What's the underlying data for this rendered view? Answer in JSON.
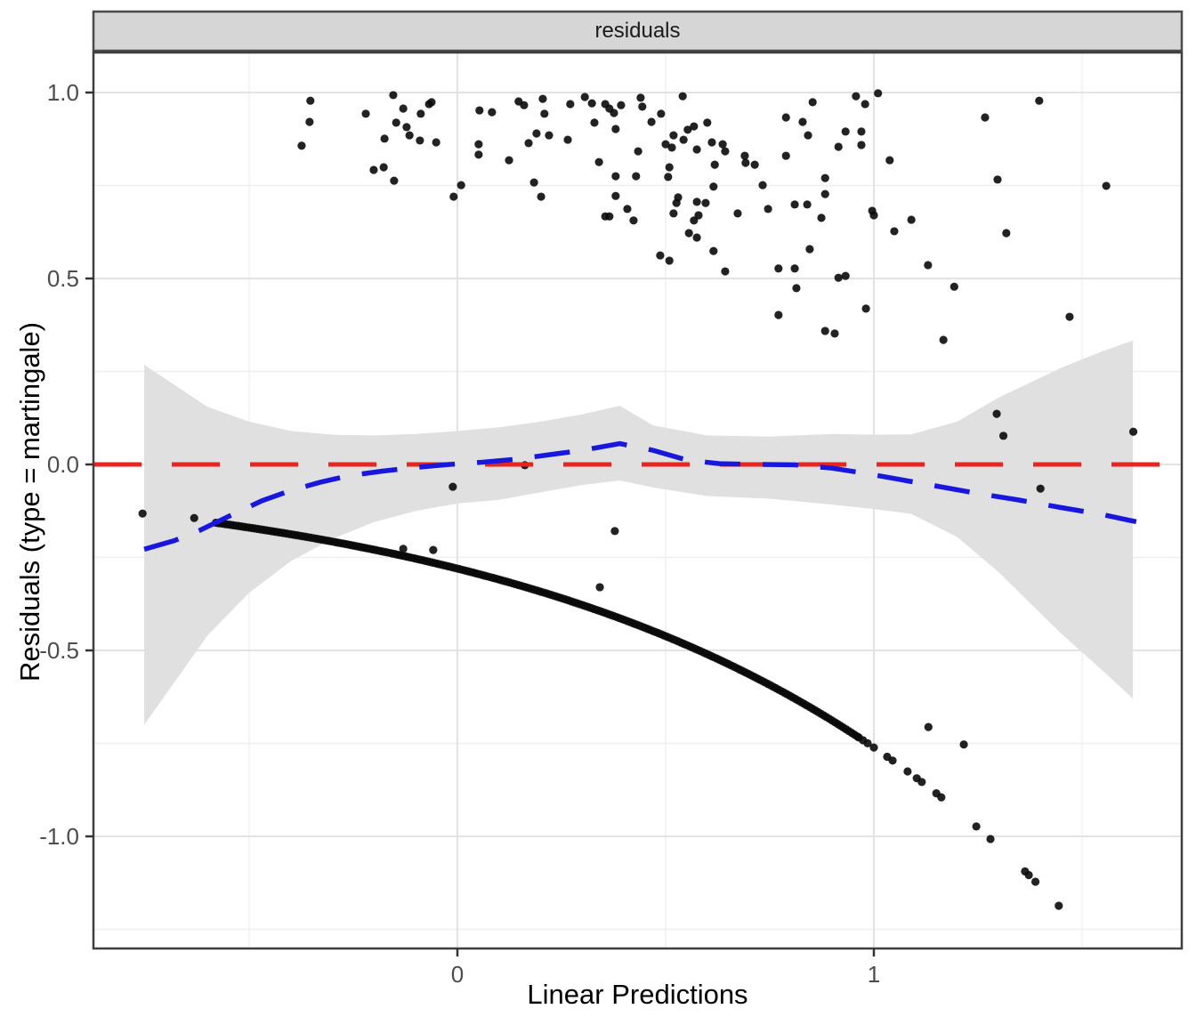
{
  "chart_data": {
    "type": "scatter",
    "facet_label": "residuals",
    "xlabel": "Linear Predictions",
    "ylabel": "Residuals (type = martingale)",
    "x_range": [
      -0.874,
      1.739
    ],
    "y_range": [
      -1.301,
      1.105
    ],
    "grid": "on",
    "x_ticks": [
      {
        "value": 0,
        "label": "0"
      },
      {
        "value": 1,
        "label": "1"
      }
    ],
    "y_ticks": [
      {
        "value": 1.0,
        "label": "1.0"
      },
      {
        "value": 0.5,
        "label": "0.5"
      },
      {
        "value": 0.0,
        "label": "0.0"
      },
      {
        "value": -0.5,
        "label": "-0.5"
      },
      {
        "value": -1.0,
        "label": "-1.0"
      }
    ],
    "x_minor": [
      -0.5,
      0.5,
      1.5
    ],
    "y_minor": [
      0.75,
      0.25,
      -0.25,
      -0.75,
      -1.25
    ],
    "theme": {
      "background": "#FFFFFF",
      "panel_border": "#3F3F3F",
      "grid_major": "#E3E3E3",
      "grid_minor": "#EFEFEF",
      "strip_fill": "#D6D6D6",
      "strip_border": "#4A4A4A",
      "tick_color": "#333333",
      "tick_label_color": "#4D4D4D",
      "point_color": "#0A0A0A",
      "point_radius": 4.6,
      "point_opacity": 0.9
    },
    "hline": {
      "y": 0,
      "color": "#E8251F",
      "dash": [
        54,
        34
      ],
      "width": 5
    },
    "smooth": {
      "color": "#1717DF",
      "dash": [
        40,
        25
      ],
      "width": 5.5,
      "points": [
        [
          -0.752,
          -0.228
        ],
        [
          -0.68,
          -0.205
        ],
        [
          -0.62,
          -0.178
        ],
        [
          -0.55,
          -0.14
        ],
        [
          -0.47,
          -0.098
        ],
        [
          -0.4,
          -0.07
        ],
        [
          -0.33,
          -0.048
        ],
        [
          -0.26,
          -0.03
        ],
        [
          -0.18,
          -0.018
        ],
        [
          -0.1,
          -0.008
        ],
        [
          -0.02,
          0.0
        ],
        [
          0.06,
          0.006
        ],
        [
          0.14,
          0.014
        ],
        [
          0.22,
          0.026
        ],
        [
          0.3,
          0.038
        ],
        [
          0.39,
          0.056
        ],
        [
          0.47,
          0.038
        ],
        [
          0.55,
          0.012
        ],
        [
          0.63,
          0.002
        ],
        [
          0.72,
          0.0
        ],
        [
          0.81,
          -0.001
        ],
        [
          0.9,
          -0.01
        ],
        [
          0.98,
          -0.024
        ],
        [
          1.06,
          -0.04
        ],
        [
          1.15,
          -0.058
        ],
        [
          1.25,
          -0.078
        ],
        [
          1.35,
          -0.096
        ],
        [
          1.45,
          -0.116
        ],
        [
          1.55,
          -0.135
        ],
        [
          1.63,
          -0.154
        ]
      ]
    },
    "ribbon": {
      "color": "#E0E0E0",
      "points": [
        [
          -0.752,
          -0.7,
          0.268
        ],
        [
          -0.6,
          -0.46,
          0.155
        ],
        [
          -0.5,
          -0.345,
          0.115
        ],
        [
          -0.4,
          -0.26,
          0.09
        ],
        [
          -0.3,
          -0.2,
          0.08
        ],
        [
          -0.2,
          -0.155,
          0.078
        ],
        [
          -0.1,
          -0.125,
          0.082
        ],
        [
          0.0,
          -0.105,
          0.09
        ],
        [
          0.1,
          -0.095,
          0.1
        ],
        [
          0.2,
          -0.075,
          0.115
        ],
        [
          0.3,
          -0.055,
          0.135
        ],
        [
          0.39,
          -0.043,
          0.158
        ],
        [
          0.47,
          -0.062,
          0.105
        ],
        [
          0.6,
          -0.085,
          0.078
        ],
        [
          0.75,
          -0.092,
          0.075
        ],
        [
          0.9,
          -0.108,
          0.082
        ],
        [
          1.0,
          -0.12,
          0.08
        ],
        [
          1.09,
          -0.133,
          0.081
        ],
        [
          1.2,
          -0.195,
          0.115
        ],
        [
          1.3,
          -0.29,
          0.18
        ],
        [
          1.45,
          -0.455,
          0.26
        ],
        [
          1.55,
          -0.555,
          0.305
        ],
        [
          1.622,
          -0.63,
          0.333
        ]
      ]
    },
    "event_points": [
      [
        -0.374,
        0.857
      ],
      [
        -0.355,
        0.921
      ],
      [
        -0.353,
        0.978
      ],
      [
        -0.22,
        0.943
      ],
      [
        -0.201,
        0.792
      ],
      [
        -0.177,
        0.799
      ],
      [
        -0.175,
        0.876
      ],
      [
        -0.154,
        0.993
      ],
      [
        -0.152,
        0.763
      ],
      [
        -0.147,
        0.919
      ],
      [
        -0.13,
        0.957
      ],
      [
        -0.122,
        0.907
      ],
      [
        -0.115,
        0.885
      ],
      [
        -0.09,
        0.871
      ],
      [
        -0.088,
        0.943
      ],
      [
        -0.068,
        0.969
      ],
      [
        -0.062,
        0.974
      ],
      [
        -0.051,
        0.866
      ],
      [
        -0.009,
        0.72
      ],
      [
        0.009,
        0.751
      ],
      [
        0.051,
        0.861
      ],
      [
        0.051,
        0.833
      ],
      [
        0.053,
        0.952
      ],
      [
        0.083,
        0.947
      ],
      [
        0.124,
        0.818
      ],
      [
        0.147,
        0.976
      ],
      [
        0.16,
        0.966
      ],
      [
        0.171,
        0.864
      ],
      [
        0.184,
        0.758
      ],
      [
        0.19,
        0.89
      ],
      [
        0.201,
        0.72
      ],
      [
        0.205,
        0.983
      ],
      [
        0.209,
        0.943
      ],
      [
        0.22,
        0.885
      ],
      [
        0.265,
        0.873
      ],
      [
        0.271,
        0.969
      ],
      [
        0.306,
        0.988
      ],
      [
        0.323,
        0.971
      ],
      [
        0.329,
        0.919
      ],
      [
        0.34,
        0.813
      ],
      [
        0.355,
        0.667
      ],
      [
        0.355,
        0.969
      ],
      [
        0.365,
        0.957
      ],
      [
        0.365,
        0.667
      ],
      [
        0.376,
        0.945
      ],
      [
        0.38,
        0.902
      ],
      [
        0.38,
        0.775
      ],
      [
        0.38,
        0.722
      ],
      [
        0.393,
        0.966
      ],
      [
        0.408,
        0.687
      ],
      [
        0.423,
        0.656
      ],
      [
        0.429,
        0.775
      ],
      [
        0.434,
        0.842
      ],
      [
        0.44,
        0.986
      ],
      [
        0.444,
        0.962
      ],
      [
        0.466,
        0.921
      ],
      [
        0.487,
        0.562
      ],
      [
        0.489,
        0.943
      ],
      [
        0.5,
        0.861
      ],
      [
        0.506,
        0.773
      ],
      [
        0.509,
        0.799
      ],
      [
        0.509,
        0.548
      ],
      [
        0.515,
        0.852
      ],
      [
        0.519,
        0.885
      ],
      [
        0.519,
        0.675
      ],
      [
        0.526,
        0.703
      ],
      [
        0.53,
        0.718
      ],
      [
        0.541,
        0.99
      ],
      [
        0.543,
        0.873
      ],
      [
        0.553,
        0.9
      ],
      [
        0.556,
        0.622
      ],
      [
        0.568,
        0.909
      ],
      [
        0.568,
        0.656
      ],
      [
        0.575,
        0.847
      ],
      [
        0.575,
        0.706
      ],
      [
        0.575,
        0.61
      ],
      [
        0.579,
        0.67
      ],
      [
        0.596,
        0.703
      ],
      [
        0.6,
        0.919
      ],
      [
        0.611,
        0.866
      ],
      [
        0.615,
        0.747
      ],
      [
        0.615,
        0.574
      ],
      [
        0.618,
        0.806
      ],
      [
        0.637,
        0.861
      ],
      [
        0.643,
        0.842
      ],
      [
        0.643,
        0.519
      ],
      [
        0.673,
        0.675
      ],
      [
        0.69,
        0.83
      ],
      [
        0.692,
        0.811
      ],
      [
        0.714,
        0.806
      ],
      [
        0.733,
        0.751
      ],
      [
        0.746,
        0.687
      ],
      [
        0.771,
        0.527
      ],
      [
        0.771,
        0.402
      ],
      [
        0.789,
        0.933
      ],
      [
        0.789,
        0.83
      ],
      [
        0.81,
        0.699
      ],
      [
        0.81,
        0.527
      ],
      [
        0.814,
        0.474
      ],
      [
        0.829,
        0.921
      ],
      [
        0.84,
        0.699
      ],
      [
        0.842,
        0.885
      ],
      [
        0.846,
        0.579
      ],
      [
        0.853,
        0.974
      ],
      [
        0.874,
        0.663
      ],
      [
        0.883,
        0.77
      ],
      [
        0.883,
        0.727
      ],
      [
        0.883,
        0.359
      ],
      [
        0.906,
        0.352
      ],
      [
        0.915,
        0.854
      ],
      [
        0.915,
        0.502
      ],
      [
        0.932,
        0.895
      ],
      [
        0.932,
        0.507
      ],
      [
        0.957,
        0.99
      ],
      [
        0.97,
        0.895
      ],
      [
        0.97,
        0.859
      ],
      [
        0.979,
        0.969
      ],
      [
        0.981,
        0.419
      ],
      [
        0.996,
        0.682
      ],
      [
        1.0,
        0.67
      ],
      [
        1.01,
        0.998
      ],
      [
        1.038,
        0.818
      ],
      [
        1.049,
        0.627
      ],
      [
        1.09,
        0.658
      ],
      [
        1.13,
        0.536
      ],
      [
        1.167,
        0.335
      ],
      [
        1.193,
        0.478
      ],
      [
        1.267,
        0.933
      ],
      [
        1.295,
        0.136
      ],
      [
        1.297,
        0.766
      ],
      [
        1.311,
        0.077
      ],
      [
        1.318,
        0.622
      ],
      [
        1.397,
        0.978
      ],
      [
        1.4,
        -0.065
      ],
      [
        1.47,
        0.397
      ],
      [
        1.558,
        0.749
      ],
      [
        1.623,
        0.088
      ],
      [
        0.162,
        -0.002
      ],
      [
        -0.011,
        -0.06
      ]
    ],
    "censored_curve": {
      "coef": -0.28,
      "dense_x_min": -0.58,
      "dense_x_max": 0.96,
      "dense_count": 230,
      "sparse_x": [
        0.964,
        0.974,
        0.985,
        1.0,
        1.032,
        1.045,
        1.081,
        1.103,
        1.115,
        1.15,
        1.162,
        1.246,
        1.28,
        1.363,
        1.372,
        1.388,
        1.444
      ],
      "head_points": [
        [
          -0.756,
          -0.132
        ],
        [
          -0.632,
          -0.144
        ]
      ],
      "offset_points": [
        [
          -0.13,
          -0.227
        ],
        [
          -0.058,
          -0.23
        ],
        [
          0.378,
          -0.179
        ],
        [
          0.342,
          -0.33
        ],
        [
          1.131,
          -0.706
        ],
        [
          1.216,
          -0.753
        ]
      ]
    }
  }
}
